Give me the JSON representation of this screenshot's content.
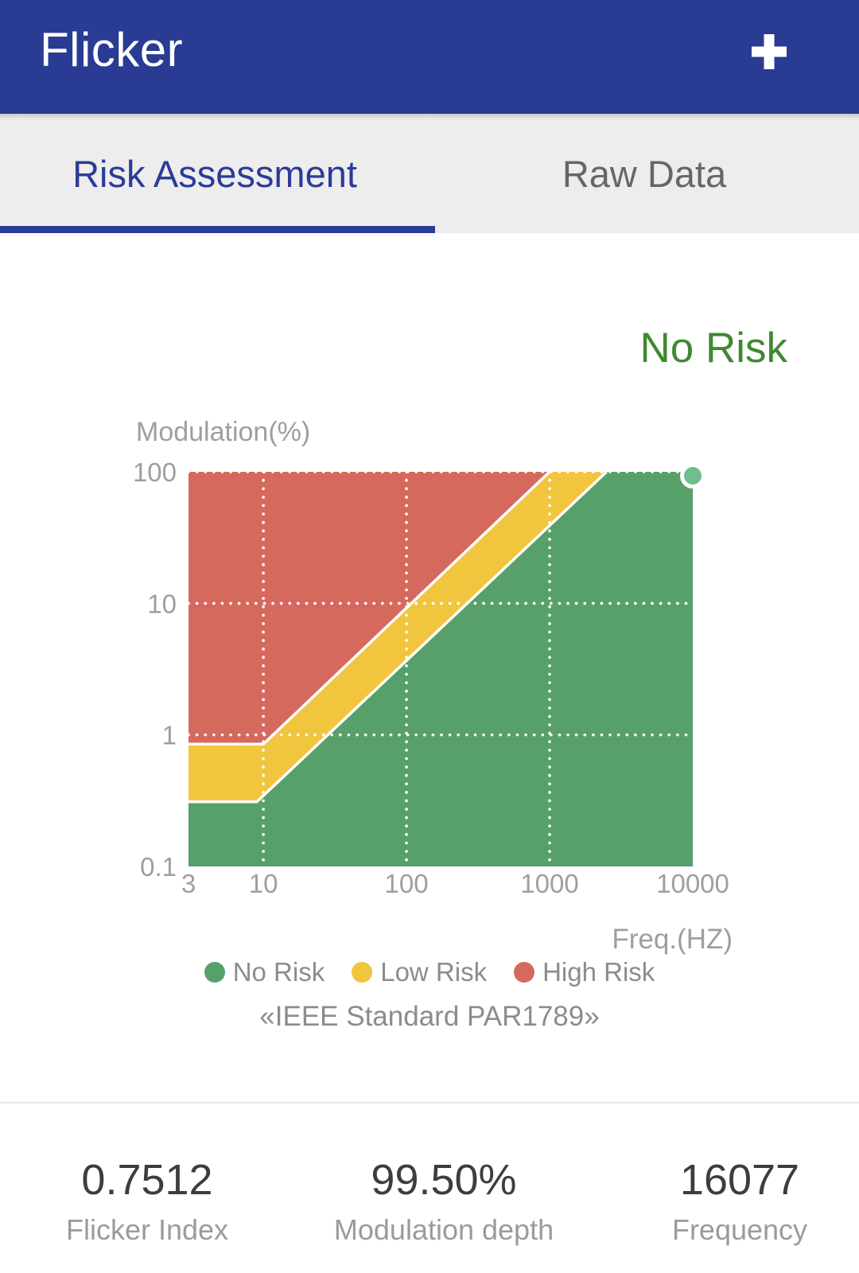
{
  "app_bar": {
    "title": "Flicker",
    "add_button": "+"
  },
  "tabs": [
    {
      "label": "Risk Assessment",
      "active": true
    },
    {
      "label": "Raw Data",
      "active": false
    }
  ],
  "result_status": {
    "label": "No Risk",
    "color": "#3e8931"
  },
  "legend": [
    {
      "label": "No Risk",
      "color": "#57a06a"
    },
    {
      "label": "Low Risk",
      "color": "#f2c53f"
    },
    {
      "label": "High Risk",
      "color": "#d6695e"
    }
  ],
  "standard_caption": {
    "text": "《IEEE Standard PAR1789》",
    "display_open": "«",
    "display_body": "IEEE Standard PAR1789",
    "display_close": "»"
  },
  "stats": [
    {
      "value": "0.7512",
      "label": "Flicker Index"
    },
    {
      "value": "99.50%",
      "label": "Modulation depth"
    },
    {
      "value": "16077",
      "label": "Frequency"
    }
  ],
  "colors": {
    "header_bg": "#2a3b94",
    "tab_bar_bg": "#ededed",
    "tab_active": "#2b3c97",
    "tab_inactive": "#666666",
    "status_green": "#3e8931",
    "axis_label_gray": "#9e9e9e",
    "legend_gray": "#8c8c8c",
    "stat_value_dark": "#3d3d3d",
    "stat_label_gray": "#9b9b9b"
  },
  "chart_data": {
    "type": "area",
    "title": "",
    "x_axis": {
      "label": "Freq.(HZ)",
      "scale": "log",
      "min": 3,
      "max": 10000,
      "ticks": [
        3,
        10,
        100,
        1000,
        10000
      ],
      "gridlines": [
        10,
        100,
        1000
      ]
    },
    "y_axis": {
      "label": "Modulation(%)",
      "scale": "log",
      "min": 0.1,
      "max": 100,
      "ticks": [
        0.1,
        1,
        10,
        100
      ],
      "gridlines": [
        1,
        10,
        100
      ]
    },
    "zones": [
      {
        "name": "High Risk",
        "color": "#d6695e"
      },
      {
        "name": "Low Risk",
        "color": "#f2c53f"
      },
      {
        "name": "No Risk",
        "color": "#57a06a"
      }
    ],
    "boundaries": {
      "high_low_risk": [
        [
          3,
          0.85
        ],
        [
          10,
          0.85
        ],
        [
          1000,
          100
        ]
      ],
      "low_no_risk": [
        [
          3,
          0.31
        ],
        [
          9,
          0.31
        ],
        [
          2500,
          100
        ]
      ]
    },
    "point": {
      "freq": 10000,
      "modulation": 100,
      "color": "#6fbe8e"
    },
    "grid_color": "#ffffff",
    "boundary_line_color": "#ffffff",
    "grid_style": "dotted",
    "legend_position": "bottom"
  }
}
